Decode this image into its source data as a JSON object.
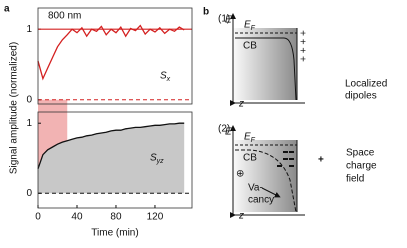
{
  "panel_labels": [
    "a",
    "b"
  ],
  "chart_data": [
    {
      "type": "line",
      "annotation": "800 nm",
      "ylabel": "Signal amplitude (normalized)",
      "x": [
        0,
        5,
        10,
        15,
        20,
        25,
        30,
        35,
        40,
        45,
        50,
        55,
        60,
        65,
        70,
        75,
        80,
        85,
        90,
        95,
        100,
        105,
        110,
        115,
        120,
        125,
        130,
        135,
        140,
        145,
        150
      ],
      "series": [
        {
          "name": "Sx",
          "color": "#d42020",
          "values": [
            0.55,
            0.3,
            0.45,
            0.6,
            0.75,
            0.85,
            0.92,
            1.0,
            0.95,
            1.02,
            0.9,
            1.0,
            0.97,
            1.04,
            0.92,
            1.0,
            0.95,
            1.03,
            0.9,
            1.01,
            0.98,
            1.05,
            0.93,
            1.0,
            0.96,
            1.02,
            0.94,
            1.0,
            0.97,
            1.03,
            0.99
          ]
        }
      ],
      "shade_xlim": [
        0,
        30
      ],
      "shade_color": "#f2b3b3",
      "xlim": [
        0,
        158
      ],
      "ylim": [
        -0.06,
        1.3
      ],
      "yticks": [
        0,
        1
      ],
      "grid": true
    },
    {
      "type": "area",
      "xlabel": "Time (min)",
      "x": [
        0,
        5,
        10,
        15,
        20,
        25,
        30,
        35,
        40,
        45,
        50,
        55,
        60,
        65,
        70,
        75,
        80,
        85,
        90,
        95,
        100,
        105,
        110,
        115,
        120,
        125,
        130,
        135,
        140,
        145,
        150
      ],
      "series": [
        {
          "name": "Syz",
          "color": "#111111",
          "fill": "#c8c8c8",
          "values": [
            0.35,
            0.55,
            0.62,
            0.66,
            0.7,
            0.73,
            0.75,
            0.77,
            0.79,
            0.8,
            0.82,
            0.83,
            0.85,
            0.86,
            0.87,
            0.89,
            0.9,
            0.9,
            0.92,
            0.93,
            0.94,
            0.94,
            0.95,
            0.96,
            0.97,
            0.97,
            0.98,
            0.99,
            0.99,
            1.0,
            1.0
          ]
        }
      ],
      "xlim": [
        0,
        158
      ],
      "xticks": [
        0,
        40,
        80,
        120
      ],
      "ylim": [
        -0.21,
        1.16
      ],
      "yticks": [
        0,
        1
      ],
      "grid": false
    }
  ],
  "diagram": {
    "panel1": {
      "number": "(1)",
      "energy_axis": "E",
      "fermi": "EF",
      "band": "CB",
      "depth_axis": "z",
      "charges": "+ + + +",
      "caption": [
        "Localized",
        "dipoles"
      ]
    },
    "panel2": {
      "number": "(2)",
      "energy_axis": "E",
      "fermi": "EF",
      "band": "CB",
      "depth_axis": "z",
      "vacancy_symbol": "⊕",
      "vacancy": [
        "Va-",
        "cancy"
      ],
      "field_symbol": "+",
      "caption": [
        "Space",
        "charge",
        "field"
      ]
    }
  }
}
